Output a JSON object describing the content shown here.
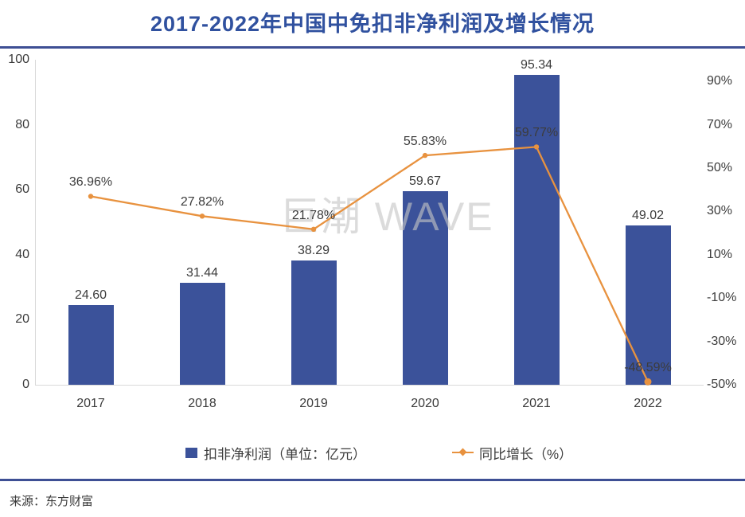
{
  "title": "2017-2022年中国中免扣非净利润及增长情况",
  "watermark": "巨潮 WAVE",
  "source": "来源：东方财富",
  "legend": {
    "profit": "扣非净利润（单位：亿元）",
    "growth": "同比增长（%）"
  },
  "colors": {
    "bar": "#3B529A",
    "line": "#E8923F",
    "title": "#30519F",
    "rule": "#3E4F94",
    "text": "#3C3C3C",
    "axis_line": "#D9D9D9"
  },
  "chart_data": {
    "type": "bar+line combo",
    "categories": [
      "2017",
      "2018",
      "2019",
      "2020",
      "2021",
      "2022"
    ],
    "series": [
      {
        "name": "扣非净利润（单位：亿元）",
        "type": "bar",
        "axis": "left",
        "values": [
          24.6,
          31.44,
          38.29,
          59.67,
          95.34,
          49.02
        ],
        "labels": [
          "24.60",
          "31.44",
          "38.29",
          "59.67",
          "95.34",
          "49.02"
        ]
      },
      {
        "name": "同比增长（%）",
        "type": "line",
        "axis": "right",
        "values": [
          36.96,
          27.82,
          21.78,
          55.83,
          59.77,
          -48.59
        ],
        "labels": [
          "36.96%",
          "27.82%",
          "21.78%",
          "55.83%",
          "59.77%",
          "-48.59%"
        ]
      }
    ],
    "left_axis": {
      "min": 0,
      "max": 100,
      "ticks": [
        0,
        20,
        40,
        60,
        80,
        100
      ]
    },
    "right_axis": {
      "min": -50,
      "max": 100,
      "tick_values": [
        90,
        70,
        50,
        30,
        10,
        -10,
        -30,
        -50
      ],
      "tick_labels": [
        "90%",
        "70%",
        "50%",
        "30%",
        "10%",
        "-10%",
        "-30%",
        "-50%"
      ]
    },
    "grid": false,
    "legend_position": "bottom"
  }
}
